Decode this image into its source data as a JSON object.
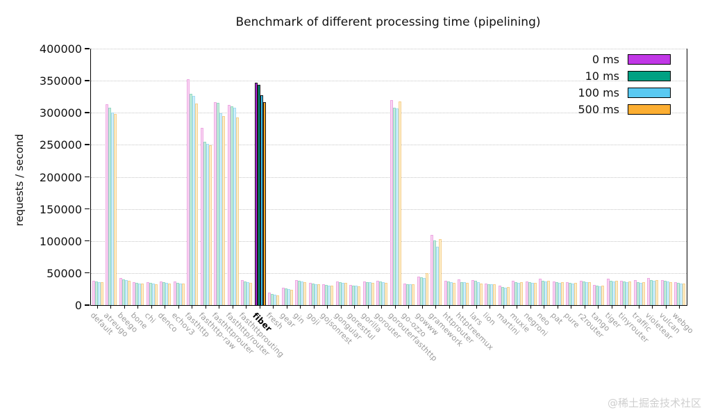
{
  "watermark": "@稀土掘金技术社区",
  "colors": {
    "axis": "#000000",
    "grid": "#c6c6c6",
    "xlabel_gray": "#9a9a9a",
    "highlight_label": "#000000",
    "watermark": "#cfcfcf"
  },
  "chart_data": {
    "type": "bar",
    "title": "Benchmark of different processing time (pipelining)",
    "xlabel": "",
    "ylabel": "requests / second",
    "ylim": [
      0,
      400000
    ],
    "yticks": [
      0,
      50000,
      100000,
      150000,
      200000,
      250000,
      300000,
      350000,
      400000
    ],
    "grid": "dotted-horizontal",
    "legend_position": "top-right",
    "highlight_category": "fiber",
    "categories": [
      "default",
      "atreugo",
      "beego",
      "bone",
      "chi",
      "denco",
      "echov3",
      "fasthttp",
      "fasthttp-raw",
      "fasthttprouter",
      "fasthttp/router",
      "fasthttprouting",
      "fiber",
      "fresh",
      "gear",
      "gin",
      "goji",
      "gojsonrest",
      "gongular",
      "gorestful",
      "gorilla",
      "gorouter",
      "gorouterfasthttp",
      "go-ozzo",
      "gowww",
      "gramework",
      "httprouter",
      "httptreemux",
      "lars",
      "lion",
      "martini",
      "muxie",
      "negroni",
      "neo",
      "pat",
      "pure",
      "r2router",
      "tango",
      "tiger",
      "tinyrouter",
      "traffic",
      "violetear",
      "vulcan",
      "webgo"
    ],
    "series": [
      {
        "name": "0 ms",
        "color": "#c137e6",
        "strong": "#a820d6",
        "pale": "#f9d4f3",
        "pale_edge": "#eda9e2",
        "values": [
          38000,
          313000,
          42000,
          36000,
          36000,
          37000,
          37000,
          352000,
          276000,
          317000,
          312000,
          39000,
          347000,
          19000,
          27000,
          39000,
          35000,
          32000,
          37000,
          31000,
          37000,
          38000,
          320000,
          34000,
          44000,
          109000,
          38000,
          40000,
          39000,
          34000,
          30000,
          38000,
          37000,
          41000,
          37000,
          36000,
          38000,
          31000,
          41000,
          38000,
          39000,
          42000,
          39000,
          36000
        ]
      },
      {
        "name": "10 ms",
        "color": "#00a183",
        "strong": "#009179",
        "pale": "#c9ecdc",
        "pale_edge": "#93d9c3",
        "values": [
          37000,
          308000,
          40000,
          35000,
          35000,
          36000,
          35000,
          330000,
          255000,
          315000,
          310000,
          37000,
          344000,
          17000,
          26000,
          38000,
          34000,
          31000,
          36000,
          30000,
          36000,
          37000,
          308000,
          33000,
          43000,
          101000,
          37000,
          36000,
          38000,
          33000,
          28000,
          36000,
          36000,
          38000,
          36000,
          35000,
          37000,
          30000,
          38000,
          37000,
          36000,
          39000,
          38000,
          35000
        ]
      },
      {
        "name": "100 ms",
        "color": "#59c9f2",
        "strong": "#35bdec",
        "pale": "#d4effb",
        "pale_edge": "#a3dcf3",
        "values": [
          36000,
          300000,
          39000,
          34000,
          34000,
          35000,
          34000,
          326000,
          251000,
          299000,
          308000,
          36000,
          327000,
          16000,
          25000,
          37000,
          33000,
          30000,
          35000,
          30000,
          36000,
          36000,
          307000,
          33000,
          42000,
          91000,
          36000,
          36000,
          36000,
          33000,
          27000,
          35000,
          35000,
          37000,
          35000,
          34000,
          36000,
          29000,
          37000,
          36000,
          35000,
          38000,
          37000,
          34000
        ]
      },
      {
        "name": "500 ms",
        "color": "#fcae32",
        "strong": "#f5a623",
        "pale": "#fdedc8",
        "pale_edge": "#f6d08e",
        "values": [
          36000,
          298000,
          38000,
          34000,
          33000,
          34000,
          34000,
          314000,
          249000,
          295000,
          293000,
          35000,
          316000,
          15000,
          24000,
          36000,
          32000,
          30000,
          35000,
          29000,
          35000,
          35000,
          318000,
          32000,
          50000,
          103000,
          35000,
          35000,
          34000,
          32000,
          28000,
          36000,
          35000,
          38000,
          36000,
          35000,
          36000,
          30000,
          38000,
          37000,
          36000,
          39000,
          36000,
          34000
        ]
      }
    ]
  }
}
